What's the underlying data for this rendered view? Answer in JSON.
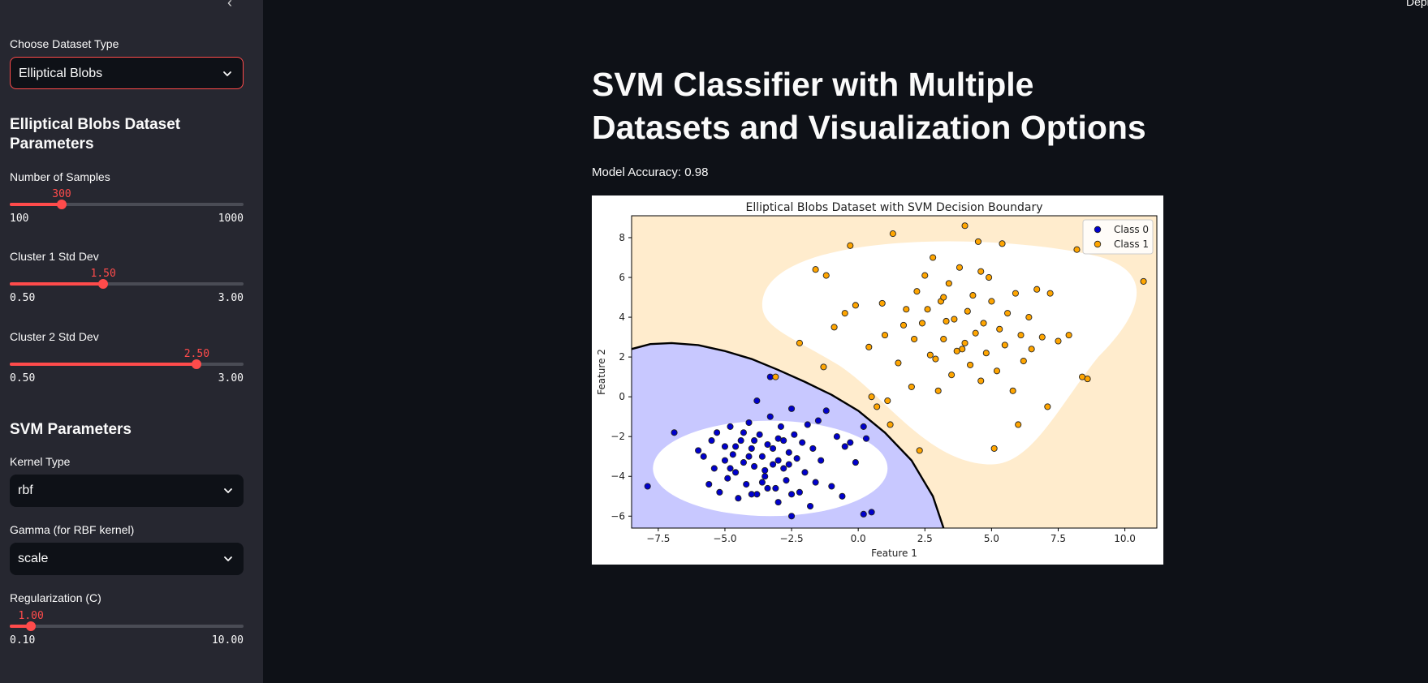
{
  "sidebar": {
    "dataset_select": {
      "label": "Choose Dataset Type",
      "value": "Elliptical Blobs"
    },
    "dataset_params_heading": "Elliptical Blobs Dataset Parameters",
    "num_samples": {
      "label": "Number of Samples",
      "value": 300,
      "value_text": "300",
      "min": "100",
      "max": "1000",
      "fraction": 0.2222
    },
    "cluster1_std": {
      "label": "Cluster 1 Std Dev",
      "value": 1.5,
      "value_text": "1.50",
      "min": "0.50",
      "max": "3.00",
      "fraction": 0.4
    },
    "cluster2_std": {
      "label": "Cluster 2 Std Dev",
      "value": 2.5,
      "value_text": "2.50",
      "min": "0.50",
      "max": "3.00",
      "fraction": 0.8
    },
    "svm_heading": "SVM Parameters",
    "kernel_select": {
      "label": "Kernel Type",
      "value": "rbf"
    },
    "gamma_select": {
      "label": "Gamma (for RBF kernel)",
      "value": "scale"
    },
    "reg_c": {
      "label": "Regularization (C)",
      "value": 1.0,
      "value_text": "1.00",
      "min": "0.10",
      "max": "10.00",
      "fraction": 0.0909
    }
  },
  "header": {
    "deploy_label": "Depl"
  },
  "main": {
    "title": "SVM Classifier with Multiple Datasets and Visualization Options",
    "accuracy_text": "Model Accuracy: 0.98"
  },
  "colors": {
    "accent": "#ff4b4b",
    "class0": "#0000cd",
    "class1": "#ffa500",
    "region0": "#c8c8ff",
    "region1": "#ffeccd"
  },
  "chart_data": {
    "type": "scatter",
    "title": "Elliptical Blobs Dataset with SVM Decision Boundary",
    "xlabel": "Feature 1",
    "ylabel": "Feature 2",
    "xlim": [
      -8.5,
      11.2
    ],
    "ylim": [
      -6.6,
      9.1
    ],
    "xticks": [
      -7.5,
      -5.0,
      -2.5,
      0.0,
      2.5,
      5.0,
      7.5,
      10.0
    ],
    "xtick_labels": [
      "−7.5",
      "−5.0",
      "−2.5",
      "0.0",
      "2.5",
      "5.0",
      "7.5",
      "10.0"
    ],
    "yticks": [
      -6,
      -4,
      -2,
      0,
      2,
      4,
      6,
      8
    ],
    "ytick_labels": [
      "−6",
      "−4",
      "−2",
      "0",
      "2",
      "4",
      "6",
      "8"
    ],
    "legend_position": "top-right",
    "grid": false,
    "decision_boundary": [
      [
        -8.5,
        2.4
      ],
      [
        -7.8,
        2.65
      ],
      [
        -7.0,
        2.7
      ],
      [
        -6.0,
        2.6
      ],
      [
        -5.0,
        2.3
      ],
      [
        -4.0,
        1.9
      ],
      [
        -3.0,
        1.35
      ],
      [
        -2.0,
        0.75
      ],
      [
        -1.0,
        0.1
      ],
      [
        0.0,
        -0.7
      ],
      [
        1.0,
        -1.8
      ],
      [
        2.0,
        -3.2
      ],
      [
        2.8,
        -5.0
      ],
      [
        3.2,
        -6.6
      ]
    ],
    "series": [
      {
        "name": "Class 0",
        "points": [
          [
            -7.9,
            -4.5
          ],
          [
            -6.9,
            -1.8
          ],
          [
            -6.0,
            -2.7
          ],
          [
            -5.8,
            -3.0
          ],
          [
            -5.6,
            -4.4
          ],
          [
            -5.5,
            -2.2
          ],
          [
            -5.4,
            -3.6
          ],
          [
            -5.3,
            -1.8
          ],
          [
            -5.2,
            -4.8
          ],
          [
            -5.0,
            -2.5
          ],
          [
            -5.0,
            -3.2
          ],
          [
            -4.9,
            -4.1
          ],
          [
            -4.8,
            -1.5
          ],
          [
            -4.7,
            -2.9
          ],
          [
            -4.6,
            -3.8
          ],
          [
            -4.5,
            -5.1
          ],
          [
            -4.4,
            -2.2
          ],
          [
            -4.3,
            -3.3
          ],
          [
            -4.2,
            -4.4
          ],
          [
            -4.1,
            -1.3
          ],
          [
            -4.0,
            -2.6
          ],
          [
            -3.9,
            -3.5
          ],
          [
            -3.8,
            -0.2
          ],
          [
            -3.8,
            -4.9
          ],
          [
            -3.7,
            -1.9
          ],
          [
            -3.6,
            -3.0
          ],
          [
            -3.5,
            -4.0
          ],
          [
            -3.4,
            -2.4
          ],
          [
            -3.3,
            -1.0
          ],
          [
            -3.2,
            -3.4
          ],
          [
            -3.1,
            -4.6
          ],
          [
            -3.0,
            -2.1
          ],
          [
            -3.0,
            -5.3
          ],
          [
            -2.9,
            -1.5
          ],
          [
            -2.8,
            -3.6
          ],
          [
            -2.7,
            -4.2
          ],
          [
            -2.6,
            -2.8
          ],
          [
            -2.5,
            -6.0
          ],
          [
            -2.5,
            -0.6
          ],
          [
            -2.4,
            -1.9
          ],
          [
            -2.3,
            -3.1
          ],
          [
            -2.2,
            -4.8
          ],
          [
            -2.1,
            -2.3
          ],
          [
            -2.0,
            -3.8
          ],
          [
            -1.9,
            -1.4
          ],
          [
            -1.8,
            -5.5
          ],
          [
            -1.7,
            -2.6
          ],
          [
            -1.6,
            -4.3
          ],
          [
            -1.5,
            -1.2
          ],
          [
            -1.4,
            -3.2
          ],
          [
            -1.2,
            -0.7
          ],
          [
            -1.0,
            -4.5
          ],
          [
            -0.8,
            -2.0
          ],
          [
            -0.6,
            -5.0
          ],
          [
            -0.5,
            -2.5
          ],
          [
            -0.3,
            -2.3
          ],
          [
            -0.1,
            -3.3
          ],
          [
            0.2,
            -5.9
          ],
          [
            0.5,
            -5.8
          ],
          [
            0.2,
            -1.5
          ],
          [
            0.3,
            -2.1
          ],
          [
            -3.3,
            1.0
          ],
          [
            -3.5,
            -3.7
          ],
          [
            -4.1,
            -3.0
          ],
          [
            -3.9,
            -2.2
          ],
          [
            -4.6,
            -2.5
          ],
          [
            -3.2,
            -2.6
          ],
          [
            -2.8,
            -2.2
          ],
          [
            -3.6,
            -4.3
          ],
          [
            -4.3,
            -1.8
          ],
          [
            -4.8,
            -3.6
          ],
          [
            -3.0,
            -3.2
          ],
          [
            -2.6,
            -3.4
          ],
          [
            -3.4,
            -4.6
          ],
          [
            -2.5,
            -4.9
          ],
          [
            -4.0,
            -4.9
          ]
        ]
      },
      {
        "name": "Class 1",
        "points": [
          [
            -3.1,
            1.0
          ],
          [
            -2.2,
            2.7
          ],
          [
            -1.6,
            6.4
          ],
          [
            -1.2,
            6.1
          ],
          [
            -1.3,
            1.5
          ],
          [
            -0.9,
            3.5
          ],
          [
            -0.5,
            4.2
          ],
          [
            -0.3,
            7.6
          ],
          [
            -0.1,
            4.6
          ],
          [
            0.4,
            2.5
          ],
          [
            0.5,
            -0.0
          ],
          [
            0.9,
            4.7
          ],
          [
            1.0,
            3.1
          ],
          [
            1.3,
            8.2
          ],
          [
            1.5,
            1.7
          ],
          [
            1.8,
            4.4
          ],
          [
            2.0,
            0.5
          ],
          [
            2.2,
            5.3
          ],
          [
            2.4,
            3.7
          ],
          [
            2.5,
            6.1
          ],
          [
            2.7,
            2.1
          ],
          [
            2.8,
            7.0
          ],
          [
            3.0,
            0.3
          ],
          [
            3.1,
            4.8
          ],
          [
            3.2,
            2.9
          ],
          [
            3.4,
            5.7
          ],
          [
            3.5,
            1.1
          ],
          [
            3.6,
            3.9
          ],
          [
            3.8,
            6.5
          ],
          [
            3.9,
            2.4
          ],
          [
            4.0,
            8.6
          ],
          [
            4.1,
            4.3
          ],
          [
            4.2,
            1.6
          ],
          [
            4.3,
            5.1
          ],
          [
            4.4,
            3.2
          ],
          [
            4.5,
            7.8
          ],
          [
            4.6,
            0.8
          ],
          [
            4.7,
            3.7
          ],
          [
            4.8,
            2.2
          ],
          [
            4.9,
            6.0
          ],
          [
            5.0,
            4.8
          ],
          [
            5.1,
            -2.6
          ],
          [
            5.2,
            1.3
          ],
          [
            5.3,
            3.4
          ],
          [
            5.4,
            7.7
          ],
          [
            5.5,
            2.6
          ],
          [
            5.6,
            4.2
          ],
          [
            5.8,
            0.3
          ],
          [
            5.9,
            5.2
          ],
          [
            6.0,
            -1.4
          ],
          [
            6.1,
            3.1
          ],
          [
            6.2,
            1.8
          ],
          [
            6.4,
            4.0
          ],
          [
            6.5,
            2.4
          ],
          [
            6.7,
            5.4
          ],
          [
            6.9,
            3.0
          ],
          [
            7.1,
            -0.5
          ],
          [
            7.2,
            5.2
          ],
          [
            7.5,
            2.8
          ],
          [
            7.9,
            3.1
          ],
          [
            8.2,
            7.4
          ],
          [
            8.4,
            1.0
          ],
          [
            8.6,
            0.9
          ],
          [
            10.7,
            5.8
          ],
          [
            2.3,
            -2.7
          ],
          [
            1.2,
            -1.4
          ],
          [
            1.1,
            -0.2
          ],
          [
            0.7,
            -0.5
          ],
          [
            2.6,
            4.4
          ],
          [
            3.3,
            3.8
          ],
          [
            4.0,
            2.7
          ],
          [
            2.9,
            1.9
          ],
          [
            3.7,
            2.3
          ],
          [
            1.7,
            3.6
          ],
          [
            2.1,
            2.9
          ],
          [
            4.6,
            6.3
          ],
          [
            3.2,
            5.0
          ]
        ]
      }
    ]
  }
}
